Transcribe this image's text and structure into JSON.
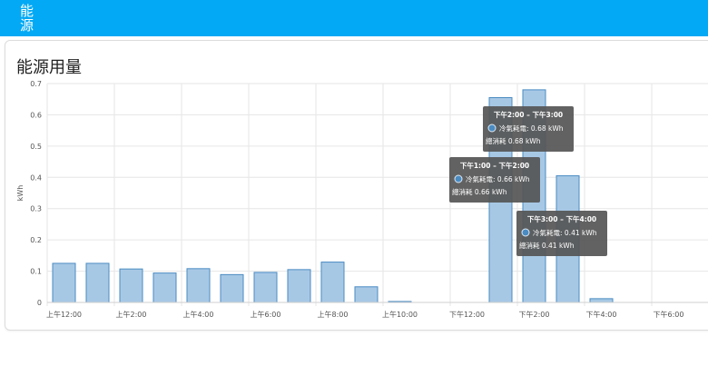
{
  "header": {
    "title": "能源"
  },
  "card": {
    "title": "能源用量"
  },
  "colors": {
    "bar_fill": "#a7c8e5",
    "bar_stroke": "#4a8bc2",
    "header": "#03a9f4",
    "grid": "#e6e6e6",
    "tooltip_bg": "#555555"
  },
  "chart_data": {
    "type": "bar",
    "ylabel": "kWh",
    "ylim": [
      0,
      0.7
    ],
    "yticks": [
      "0",
      "0.1",
      "0.2",
      "0.3",
      "0.4",
      "0.5",
      "0.6",
      "0.7"
    ],
    "xtick_labels": [
      "上午12:00",
      "上午2:00",
      "上午4:00",
      "上午6:00",
      "上午8:00",
      "上午10:00",
      "下午12:00",
      "下午2:00",
      "下午4:00",
      "下午6:00"
    ],
    "grid": true,
    "series": [
      {
        "name": "冷氣耗電",
        "values": [
          0.125,
          0.125,
          0.107,
          0.094,
          0.108,
          0.089,
          0.096,
          0.105,
          0.129,
          0.05,
          0.003,
          0,
          0,
          0.655,
          0.68,
          0.405,
          0.012,
          0,
          0,
          0
        ]
      }
    ],
    "tooltips": [
      {
        "range": "下午2:00 – 下午3:00",
        "series_line": "冷氣耗電: 0.68 kWh",
        "total_line": "總消耗 0.68 kWh"
      },
      {
        "range": "下午1:00 – 下午2:00",
        "series_line": "冷氣耗電: 0.66 kWh",
        "total_line": "總消耗 0.66 kWh"
      },
      {
        "range": "下午3:00 – 下午4:00",
        "series_line": "冷氣耗電: 0.41 kWh",
        "total_line": "總消耗 0.41 kWh"
      }
    ]
  }
}
